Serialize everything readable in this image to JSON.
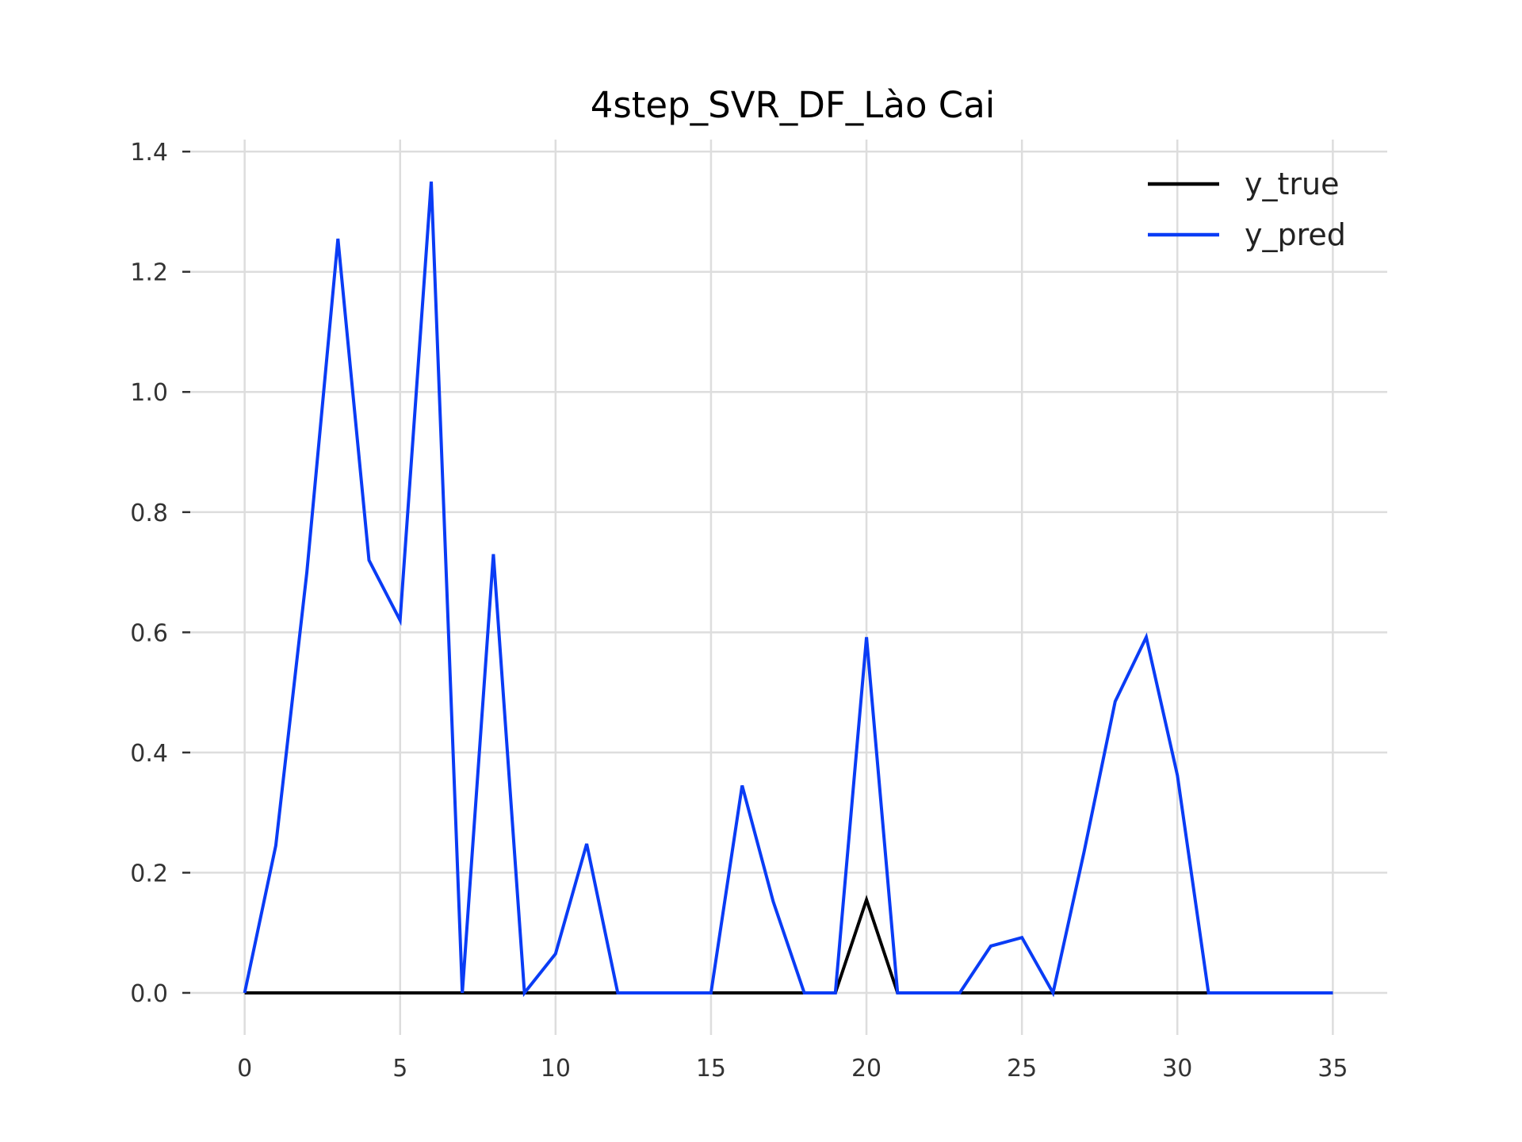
{
  "chart_data": {
    "type": "line",
    "title": "4step_SVR_DF_Lào Cai",
    "xlabel": "",
    "ylabel": "",
    "xlim": [
      -1.75,
      36.75
    ],
    "ylim": [
      -0.07,
      1.42
    ],
    "xticks": [
      0,
      5,
      10,
      15,
      20,
      25,
      30,
      35
    ],
    "yticks": [
      0.0,
      0.2,
      0.4,
      0.6,
      0.8,
      1.0,
      1.2,
      1.4
    ],
    "xtick_labels": [
      "0",
      "5",
      "10",
      "15",
      "20",
      "25",
      "30",
      "35"
    ],
    "ytick_labels": [
      "0.0",
      "0.2",
      "0.4",
      "0.6",
      "0.8",
      "1.0",
      "1.2",
      "1.4"
    ],
    "grid": true,
    "legend_position": "top-right",
    "x": [
      0,
      1,
      2,
      3,
      4,
      5,
      6,
      7,
      8,
      9,
      10,
      11,
      12,
      13,
      14,
      15,
      16,
      17,
      18,
      19,
      20,
      21,
      22,
      23,
      24,
      25,
      26,
      27,
      28,
      29,
      30,
      31,
      32,
      33,
      34,
      35
    ],
    "series": [
      {
        "name": "y_true",
        "color": "#000000",
        "values": [
          0,
          0,
          0,
          0,
          0,
          0,
          0,
          0,
          0,
          0,
          0,
          0,
          0,
          0,
          0,
          0,
          0,
          0,
          0,
          0,
          0.155,
          0,
          0,
          0,
          0,
          0,
          0,
          0,
          0,
          0,
          0,
          0,
          0,
          0,
          0,
          0
        ]
      },
      {
        "name": "y_pred",
        "color": "#0a3cf5",
        "values": [
          0,
          0.245,
          0.7,
          1.255,
          0.72,
          0.62,
          1.35,
          0,
          0.73,
          0,
          0.065,
          0.248,
          0,
          0,
          0,
          0,
          0.345,
          0.152,
          0,
          0,
          0.592,
          0,
          0,
          0,
          0.078,
          0.092,
          0,
          0.235,
          0.485,
          0.592,
          0.362,
          0,
          0,
          0,
          0,
          0
        ]
      }
    ]
  }
}
